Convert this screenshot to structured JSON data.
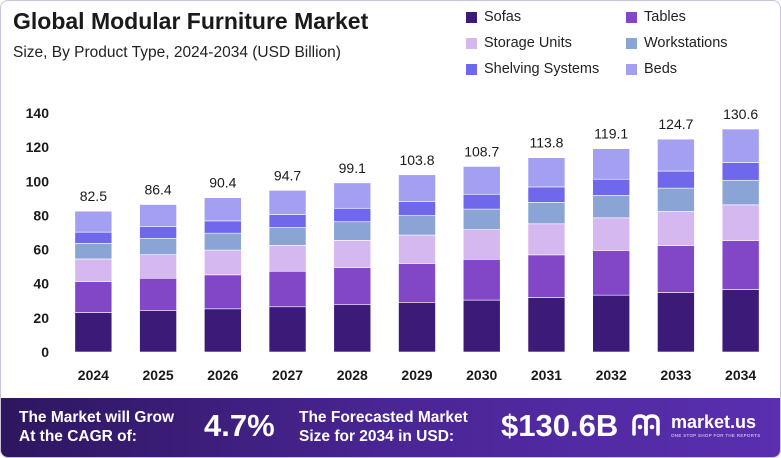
{
  "header": {
    "title": "Global Modular Furniture Market",
    "subtitle": "Size, By Product Type, 2024-2034 (USD Billion)"
  },
  "banner": {
    "cagr_label_line1": "The Market will Grow",
    "cagr_label_line2": "At the CAGR of:",
    "cagr_value": "4.7%",
    "forecast_label_line1": "The Forecasted Market",
    "forecast_label_line2": "Size for 2034 in USD:",
    "forecast_value": "$130.6B",
    "brand_name": "market.us",
    "brand_tagline": "ONE STOP SHOP FOR THE REPORTS"
  },
  "colors": {
    "Sofas": "#3c1a78",
    "Tables": "#8147c7",
    "Storage Units": "#d6b8f0",
    "Workstations": "#8aa4d6",
    "Shelving Systems": "#7068ec",
    "Beds": "#a3a0f2",
    "banner": "#3c1f80"
  },
  "chart_data": {
    "type": "bar",
    "stacked": true,
    "categories": [
      "2024",
      "2025",
      "2026",
      "2027",
      "2028",
      "2029",
      "2030",
      "2031",
      "2032",
      "2033",
      "2034"
    ],
    "series": [
      {
        "name": "Sofas",
        "values": [
          23.1,
          24.2,
          25.3,
          26.5,
          27.7,
          29.1,
          30.4,
          31.9,
          33.3,
          34.9,
          36.6
        ]
      },
      {
        "name": "Tables",
        "values": [
          18.2,
          19.0,
          19.9,
          20.8,
          21.8,
          22.8,
          23.9,
          25.0,
          26.2,
          27.4,
          28.7
        ]
      },
      {
        "name": "Storage Units",
        "values": [
          13.2,
          13.8,
          14.5,
          15.2,
          15.9,
          16.6,
          17.4,
          18.2,
          19.1,
          20.0,
          20.9
        ]
      },
      {
        "name": "Workstations",
        "values": [
          9.1,
          9.5,
          9.9,
          10.4,
          10.9,
          11.4,
          12.0,
          12.5,
          13.1,
          13.7,
          14.4
        ]
      },
      {
        "name": "Shelving Systems",
        "values": [
          6.6,
          6.9,
          7.2,
          7.6,
          7.9,
          8.3,
          8.7,
          9.1,
          9.5,
          10.0,
          10.4
        ]
      },
      {
        "name": "Beds",
        "values": [
          12.3,
          13.0,
          13.6,
          14.2,
          14.9,
          15.6,
          16.3,
          17.1,
          17.9,
          18.7,
          19.6
        ]
      }
    ],
    "totals": [
      "82.5",
      "86.4",
      "90.4",
      "94.7",
      "99.1",
      "103.8",
      "108.7",
      "113.8",
      "119.1",
      "124.7",
      "130.6"
    ],
    "yticks": [
      "0",
      "20",
      "40",
      "60",
      "80",
      "100",
      "120",
      "140"
    ],
    "ylim": [
      0,
      140
    ],
    "grid": false,
    "legend_position": "top-right"
  }
}
